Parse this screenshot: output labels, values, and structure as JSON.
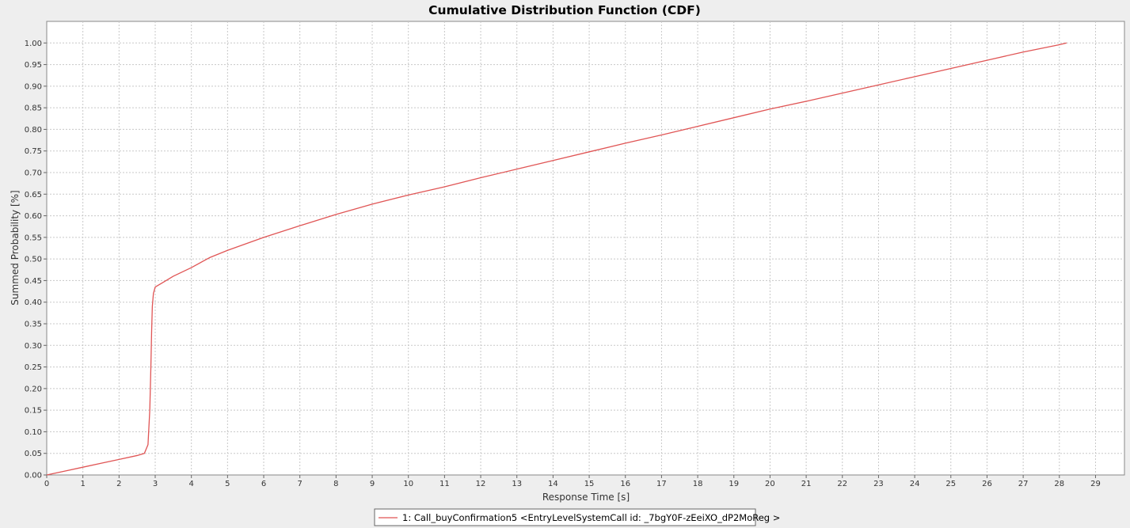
{
  "chart_data": {
    "type": "line",
    "title": "Cumulative Distribution Function (CDF)",
    "xlabel": "Response Time [s]",
    "ylabel": "Summed Probability [%]",
    "xlim": [
      0,
      29.8
    ],
    "ylim": [
      0,
      1.05
    ],
    "x_ticks": [
      "0",
      "1",
      "2",
      "3",
      "4",
      "5",
      "6",
      "7",
      "8",
      "9",
      "10",
      "11",
      "12",
      "13",
      "14",
      "15",
      "16",
      "17",
      "18",
      "19",
      "20",
      "21",
      "22",
      "23",
      "24",
      "25",
      "26",
      "27",
      "28",
      "29"
    ],
    "y_ticks": [
      "0.00",
      "0.05",
      "0.10",
      "0.15",
      "0.20",
      "0.25",
      "0.30",
      "0.35",
      "0.40",
      "0.45",
      "0.50",
      "0.55",
      "0.60",
      "0.65",
      "0.70",
      "0.75",
      "0.80",
      "0.85",
      "0.90",
      "0.95",
      "1.00"
    ],
    "grid": true,
    "legend_position": "bottom-center",
    "series": [
      {
        "name": "1: Call_buyConfirmation5 <EntryLevelSystemCall id: _7bgY0F-zEeiXO_dP2MoReg >",
        "color": "#e05555",
        "x": [
          0,
          0.5,
          1,
          1.5,
          2,
          2.5,
          2.7,
          2.8,
          2.85,
          2.88,
          2.9,
          2.92,
          2.95,
          3.0,
          3.2,
          3.5,
          4,
          4.5,
          5,
          6,
          7,
          8,
          9,
          10,
          11,
          12,
          13,
          14,
          15,
          16,
          17,
          18,
          19,
          20,
          21,
          22,
          23,
          24,
          25,
          26,
          27,
          28,
          28.2
        ],
        "y": [
          0,
          0.009,
          0.018,
          0.027,
          0.036,
          0.045,
          0.05,
          0.07,
          0.15,
          0.25,
          0.33,
          0.39,
          0.42,
          0.435,
          0.445,
          0.46,
          0.48,
          0.503,
          0.52,
          0.55,
          0.577,
          0.603,
          0.627,
          0.648,
          0.667,
          0.688,
          0.708,
          0.728,
          0.748,
          0.768,
          0.787,
          0.807,
          0.827,
          0.847,
          0.865,
          0.884,
          0.903,
          0.922,
          0.941,
          0.96,
          0.979,
          0.996,
          1.0
        ]
      }
    ]
  }
}
